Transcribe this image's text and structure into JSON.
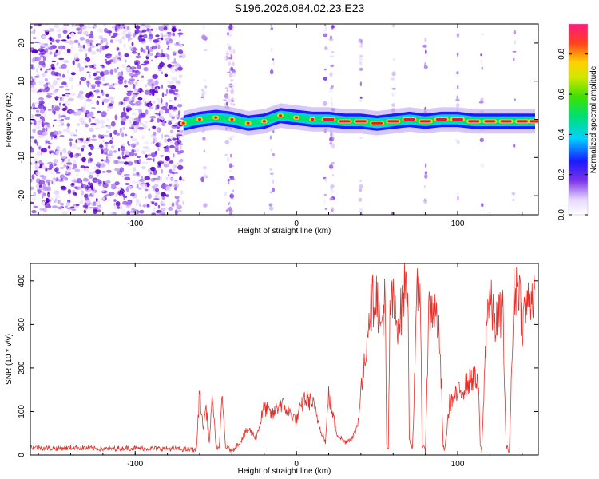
{
  "title": "S196.2026.084.02.23.E23",
  "colors": {
    "snr_line": "#e8302a",
    "ridge_core": "#e8123c",
    "scatter": "#8a2be2"
  },
  "chart_data": [
    {
      "type": "heatmap",
      "title": "S196.2026.084.02.23.E23",
      "xlabel": "Height of straight line (km)",
      "ylabel": "Frequency (Hz)",
      "xlim": [
        -165,
        150
      ],
      "ylim": [
        -25,
        25
      ],
      "x_ticks": [
        "-100",
        "0",
        "100"
      ],
      "y_ticks": [
        "20",
        "10",
        "0",
        "-10",
        "-20"
      ],
      "colorbar": {
        "label": "Normalized spectral amplitude",
        "range": [
          0,
          0.95
        ],
        "ticks": [
          "0.0",
          "0.2",
          "0.4",
          "0.6",
          "0.8"
        ]
      },
      "ridge": {
        "x": [
          -70,
          -60,
          -50,
          -40,
          -30,
          -20,
          -10,
          0,
          10,
          20,
          30,
          40,
          50,
          60,
          70,
          80,
          90,
          100,
          110,
          120,
          130,
          140,
          148
        ],
        "frequency": [
          -1,
          0,
          0.5,
          0,
          -1,
          -0.5,
          1,
          0.5,
          0,
          0,
          -0.5,
          -0.5,
          -1,
          -0.5,
          0,
          -0.5,
          0,
          0,
          -0.5,
          -0.5,
          -0.5,
          -0.5,
          -0.5
        ]
      },
      "noise_region": {
        "x_from": -165,
        "x_to": -70
      }
    },
    {
      "type": "line",
      "xlabel": "Height of straight line (km)",
      "ylabel": "SNR (10 * v/v)",
      "xlim": [
        -165,
        150
      ],
      "ylim": [
        0,
        440
      ],
      "x_ticks": [
        "-100",
        "0",
        "100"
      ],
      "y_ticks": [
        "0",
        "100",
        "200",
        "300",
        "400"
      ],
      "series": [
        {
          "x": [
            -165,
            -150,
            -135,
            -120,
            -105,
            -90,
            -75,
            -62,
            -60,
            -58,
            -56,
            -54,
            -52,
            -50,
            -48,
            -46,
            -44,
            -42,
            -40,
            -35,
            -30,
            -25,
            -20,
            -15,
            -10,
            -5,
            0,
            5,
            10,
            15,
            18,
            20,
            25,
            30,
            35,
            38,
            40,
            42,
            45,
            48,
            50,
            52,
            55,
            56,
            57,
            58,
            60,
            62,
            65,
            67,
            69,
            70,
            72,
            75,
            77,
            78,
            80,
            82,
            85,
            88,
            90,
            91,
            92,
            95,
            100,
            105,
            110,
            113,
            114,
            115,
            118,
            120,
            123,
            126,
            128,
            130,
            132,
            135,
            138,
            140,
            142,
            145,
            148
          ],
          "y": [
            18,
            15,
            17,
            14,
            16,
            15,
            14,
            12,
            150,
            60,
            110,
            30,
            140,
            20,
            15,
            130,
            20,
            15,
            10,
            30,
            60,
            40,
            110,
            90,
            120,
            100,
            80,
            130,
            120,
            60,
            30,
            140,
            50,
            30,
            40,
            70,
            150,
            200,
            330,
            360,
            370,
            280,
            360,
            20,
            10,
            340,
            350,
            300,
            330,
            380,
            400,
            40,
            15,
            380,
            360,
            20,
            10,
            330,
            340,
            300,
            150,
            20,
            10,
            120,
            140,
            160,
            180,
            150,
            20,
            10,
            330,
            360,
            300,
            320,
            340,
            20,
            10,
            370,
            400,
            300,
            340,
            360,
            380
          ]
        }
      ]
    }
  ]
}
